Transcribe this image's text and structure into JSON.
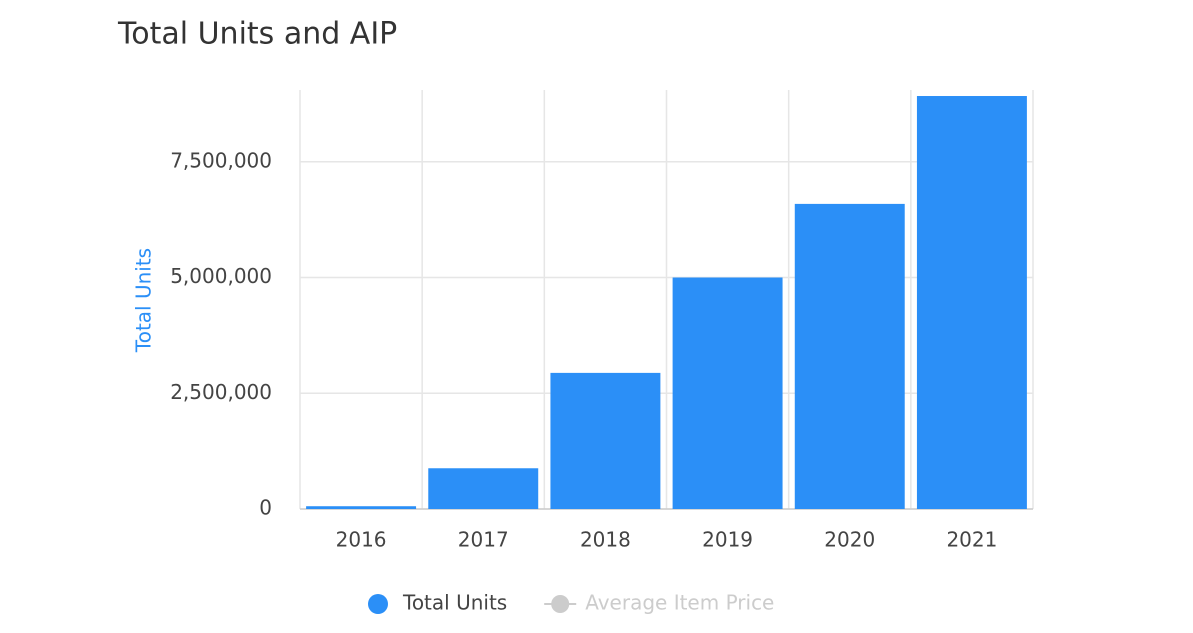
{
  "chart_data": {
    "type": "bar",
    "title": "Total Units and AIP",
    "y_axis_label": "Total Units",
    "categories": [
      "2016",
      "2017",
      "2018",
      "2019",
      "2020",
      "2021"
    ],
    "series": [
      {
        "name": "Total Units",
        "color": "#2b8ff7",
        "values": [
          60000,
          880000,
          2940000,
          5000000,
          6590000,
          8920000
        ]
      },
      {
        "name": "Average Item Price",
        "color": "#cccccc",
        "hidden": true
      }
    ],
    "ylim": [
      0,
      9050000
    ],
    "yticks": [
      0,
      {
        "value": 2500000,
        "label": "2,500,000"
      },
      {
        "value": 5000000,
        "label": "5,000,000"
      },
      {
        "value": 7500000,
        "label": "7,500,000"
      }
    ],
    "grid": true
  }
}
